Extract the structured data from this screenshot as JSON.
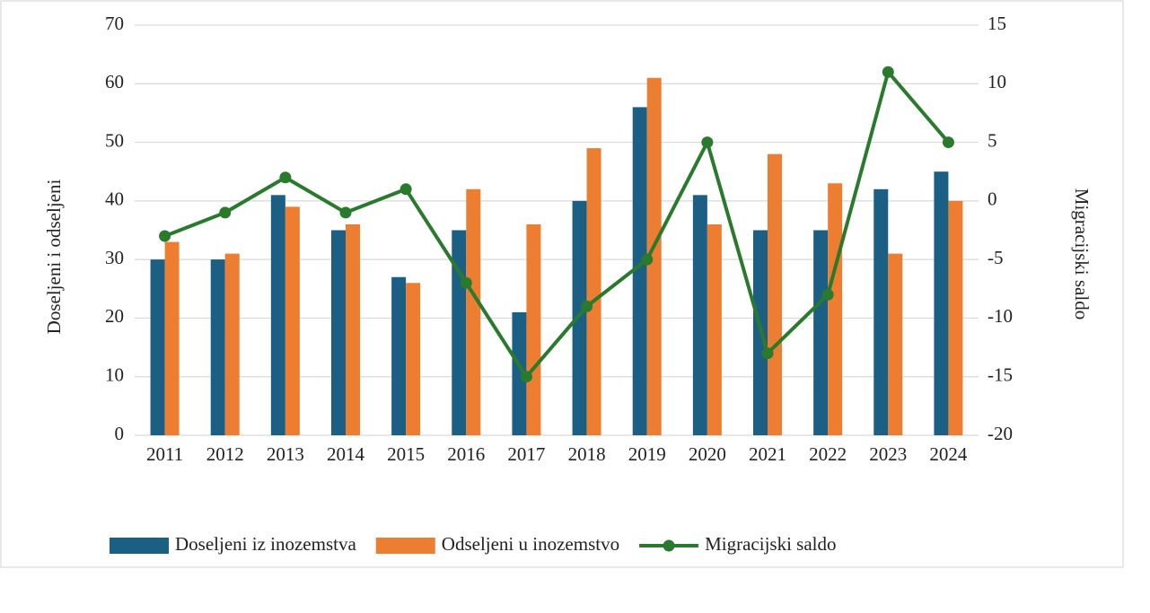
{
  "chart_data": {
    "type": "bar",
    "categories": [
      "2011",
      "2012",
      "2013",
      "2014",
      "2015",
      "2016",
      "2017",
      "2018",
      "2019",
      "2020",
      "2021",
      "2022",
      "2023",
      "2024"
    ],
    "series": [
      {
        "name": "Doseljeni iz inozemstva",
        "color": "#1c5f84",
        "values": [
          30,
          30,
          41,
          35,
          27,
          35,
          21,
          40,
          56,
          41,
          35,
          35,
          42,
          45
        ]
      },
      {
        "name": "Odseljeni u inozemstvo",
        "color": "#ed7d31",
        "values": [
          33,
          31,
          39,
          36,
          26,
          42,
          36,
          49,
          61,
          36,
          48,
          43,
          31,
          40
        ]
      },
      {
        "name": "Migracijski saldo",
        "color": "#2a7a2e",
        "type": "line",
        "axis": "y2",
        "values": [
          -3,
          -1,
          2,
          -1,
          1,
          -7,
          -15,
          -9,
          -5,
          5,
          -13,
          -8,
          11,
          5
        ]
      }
    ],
    "ylabel": "Doseljeni i odseljeni",
    "y2label": "Migracijski saldo",
    "ylim": [
      0,
      70
    ],
    "yticks": [
      0,
      10,
      20,
      30,
      40,
      50,
      60,
      70
    ],
    "y2lim": [
      -20,
      15
    ],
    "y2ticks": [
      -20,
      -15,
      -10,
      -5,
      0,
      5,
      10,
      15
    ],
    "grid": true,
    "legend": "bottom"
  }
}
